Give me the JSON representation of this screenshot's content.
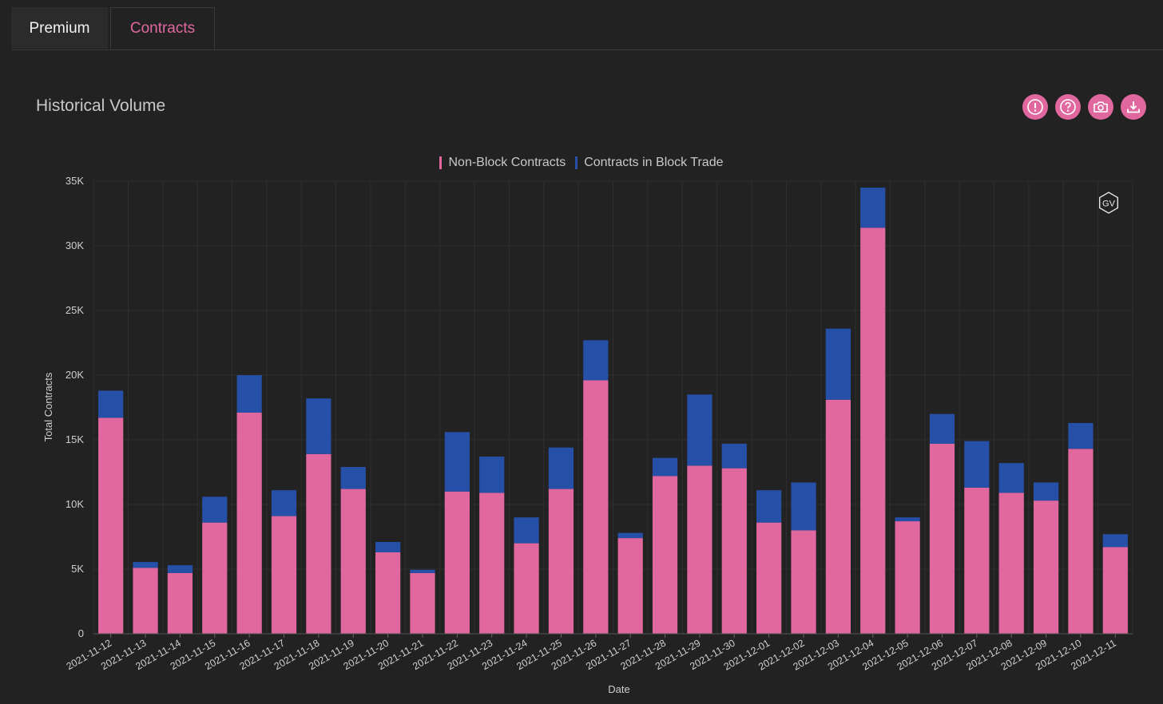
{
  "tabs": [
    {
      "label": "Premium",
      "active": false
    },
    {
      "label": "Contracts",
      "active": true
    }
  ],
  "title": "Historical Volume",
  "toolbar": [
    {
      "name": "alert-icon"
    },
    {
      "name": "help-icon"
    },
    {
      "name": "camera-icon"
    },
    {
      "name": "download-icon"
    }
  ],
  "watermark": "GV",
  "colors": {
    "accent": "#e0689f",
    "non_block": "#e0689f",
    "block": "#2650a8"
  },
  "chart_data": {
    "type": "bar",
    "stacked": true,
    "categories": [
      "2021-11-12",
      "2021-11-13",
      "2021-11-14",
      "2021-11-15",
      "2021-11-16",
      "2021-11-17",
      "2021-11-18",
      "2021-11-19",
      "2021-11-20",
      "2021-11-21",
      "2021-11-22",
      "2021-11-23",
      "2021-11-24",
      "2021-11-25",
      "2021-11-26",
      "2021-11-27",
      "2021-11-28",
      "2021-11-29",
      "2021-11-30",
      "2021-12-01",
      "2021-12-02",
      "2021-12-03",
      "2021-12-04",
      "2021-12-05",
      "2021-12-06",
      "2021-12-07",
      "2021-12-08",
      "2021-12-09",
      "2021-12-10",
      "2021-12-11"
    ],
    "series": [
      {
        "name": "Non-Block Contracts",
        "color": "#e0689f",
        "values": [
          16700,
          5100,
          4700,
          8600,
          17100,
          9100,
          13900,
          11200,
          6300,
          4700,
          11000,
          10900,
          7000,
          11200,
          19600,
          7400,
          12200,
          13000,
          12800,
          8600,
          8000,
          18100,
          31400,
          8700,
          14700,
          11300,
          10900,
          10300,
          14300,
          6700
        ]
      },
      {
        "name": "Contracts in Block Trade",
        "color": "#2650a8",
        "values": [
          2100,
          450,
          600,
          2000,
          2900,
          2000,
          4300,
          1700,
          800,
          250,
          4600,
          2800,
          2000,
          3200,
          3100,
          400,
          1400,
          5500,
          1900,
          2500,
          3700,
          5500,
          3100,
          300,
          2300,
          3600,
          2300,
          1400,
          2000,
          1000
        ]
      }
    ],
    "xlabel": "Date",
    "ylabel": "Total Contracts",
    "ylim": [
      0,
      35000
    ],
    "yticks": [
      "0",
      "5K",
      "10K",
      "15K",
      "20K",
      "25K",
      "30K",
      "35K"
    ],
    "legend_position": "top-center",
    "grid": true
  }
}
